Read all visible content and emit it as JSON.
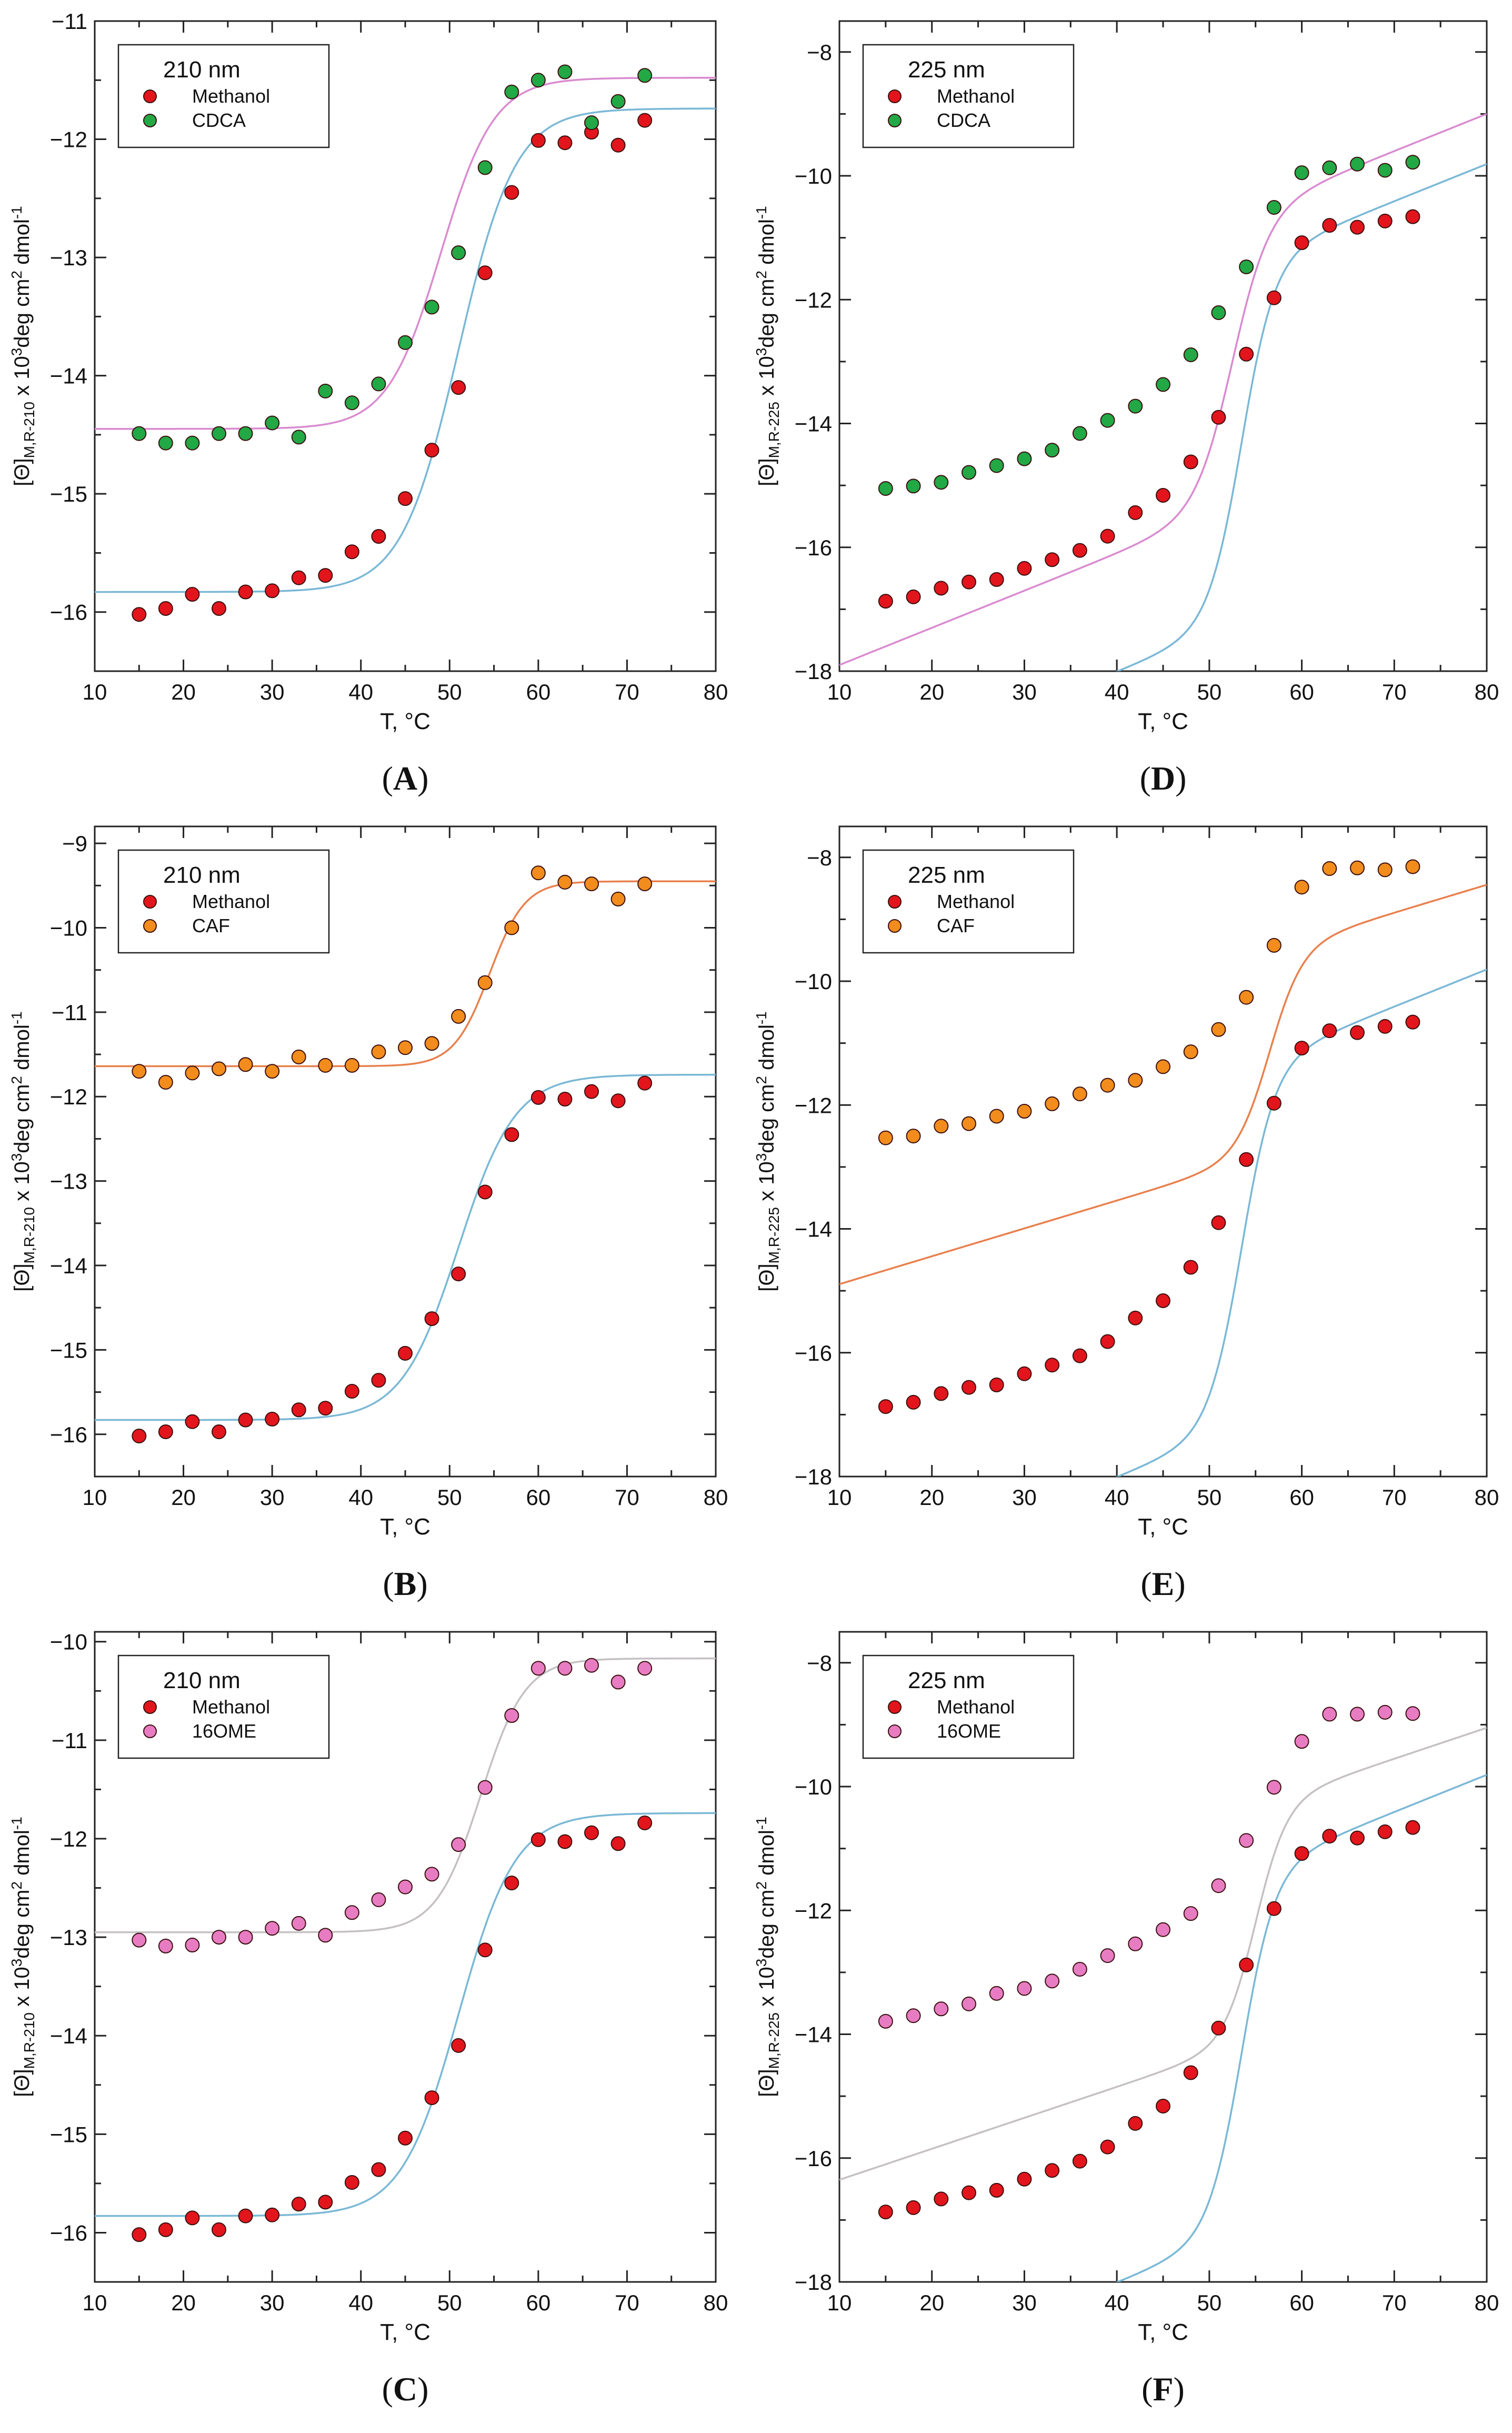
{
  "figure": {
    "colors": {
      "methanol": "#e3151c",
      "cdca": "#22a845",
      "caf": "#f28c1c",
      "ome16": "#e87cc2",
      "fit_methanol": "#7ab8d6",
      "fit_cdca": "#d98ad0",
      "fit_caf": "#e8804d",
      "fit_ome16": "#c4c0c4"
    }
  },
  "chart_data": [
    {
      "id": "A",
      "type": "scatter",
      "caption_letter": "A",
      "legend_title": "210 nm",
      "xlabel": "T, °C",
      "ylabel_main": "[Θ]",
      "ylabel_sub": "M,R-210",
      "ylabel_tail1": " x 10",
      "ylabel_sup1": "3",
      "ylabel_tail2": "deg cm",
      "ylabel_sup2": "2",
      "ylabel_tail3": " dmol",
      "ylabel_sup3": "-1",
      "xlim": [
        10,
        80
      ],
      "ylim": [
        -16.5,
        -11
      ],
      "xticks": [
        10,
        20,
        30,
        40,
        50,
        60,
        70,
        80
      ],
      "yticks": [
        -16,
        -15,
        -14,
        -13,
        -12,
        -11
      ],
      "series": [
        {
          "name": "Methanol",
          "color": "#e3151c",
          "x": [
            15,
            18,
            21,
            24,
            27,
            30,
            33,
            36,
            39,
            42,
            45,
            48,
            51,
            54,
            57,
            60,
            63,
            66,
            69,
            72
          ],
          "y": [
            -16.02,
            -15.97,
            -15.85,
            -15.97,
            -15.83,
            -15.82,
            -15.71,
            -15.69,
            -15.49,
            -15.36,
            -15.04,
            -14.63,
            -14.1,
            -13.13,
            -12.45,
            -12.01,
            -12.03,
            -11.94,
            -12.05,
            -11.84
          ]
        },
        {
          "name": "CDCA",
          "color": "#22a845",
          "x": [
            15,
            18,
            21,
            24,
            27,
            30,
            33,
            36,
            39,
            42,
            45,
            48,
            51,
            54,
            57,
            60,
            63,
            66,
            69,
            72
          ],
          "y": [
            -14.49,
            -14.57,
            -14.57,
            -14.49,
            -14.49,
            -14.4,
            -14.52,
            -14.13,
            -14.23,
            -14.07,
            -13.72,
            -13.42,
            -12.96,
            -12.24,
            -11.6,
            -11.5,
            -11.43,
            -11.86,
            -11.68,
            -11.46
          ]
        }
      ],
      "fits": [
        {
          "name": "Methanol fit",
          "color": "#7ab8d6",
          "kind": "sigmoid",
          "low": -15.83,
          "low_slope": 0,
          "high": -11.74,
          "high_slope": 0,
          "tm": 51.0,
          "width": 3.2
        },
        {
          "name": "CDCA fit",
          "color": "#d98ad0",
          "kind": "sigmoid",
          "low": -14.45,
          "low_slope": 0,
          "high": -11.48,
          "high_slope": 0,
          "tm": 49.0,
          "width": 3.0
        }
      ]
    },
    {
      "id": "D",
      "type": "scatter",
      "caption_letter": "D",
      "legend_title": "225 nm",
      "xlabel": "T, °C",
      "ylabel_main": "[Θ]",
      "ylabel_sub": "M,R-225",
      "ylabel_tail1": " x 10",
      "ylabel_sup1": "3",
      "ylabel_tail2": "deg cm",
      "ylabel_sup2": "2",
      "ylabel_tail3": " dmol",
      "ylabel_sup3": "-1",
      "xlim": [
        10,
        80
      ],
      "ylim": [
        -18,
        -7.5
      ],
      "xticks": [
        10,
        20,
        30,
        40,
        50,
        60,
        70,
        80
      ],
      "yticks": [
        -18,
        -16,
        -14,
        -12,
        -10,
        -8
      ],
      "series": [
        {
          "name": "Methanol",
          "color": "#e3151c",
          "x": [
            15,
            18,
            21,
            24,
            27,
            30,
            33,
            36,
            39,
            42,
            45,
            48,
            51,
            54,
            57,
            60,
            63,
            66,
            69,
            72
          ],
          "y": [
            -16.87,
            -16.8,
            -16.66,
            -16.56,
            -16.52,
            -16.34,
            -16.2,
            -16.05,
            -15.82,
            -15.44,
            -15.16,
            -14.62,
            -13.9,
            -12.88,
            -11.97,
            -11.08,
            -10.8,
            -10.83,
            -10.73,
            -10.66
          ]
        },
        {
          "name": "CDCA",
          "color": "#22a845",
          "x": [
            15,
            18,
            21,
            24,
            27,
            30,
            33,
            36,
            39,
            42,
            45,
            48,
            51,
            54,
            57,
            60,
            63,
            66,
            69,
            72
          ],
          "y": [
            -15.05,
            -15.01,
            -14.95,
            -14.79,
            -14.68,
            -14.57,
            -14.43,
            -14.16,
            -13.95,
            -13.72,
            -13.37,
            -12.89,
            -12.21,
            -11.47,
            -10.51,
            -9.95,
            -9.87,
            -9.81,
            -9.91,
            -9.78
          ]
        }
      ],
      "fits": [
        {
          "name": "Methanol fit",
          "color": "#7ab8d6",
          "kind": "sigmoid",
          "low": -17.2,
          "low_slope": 0.06,
          "high": -11.4,
          "high_slope": 0.06,
          "tm": 53.5,
          "width": 1.8
        },
        {
          "name": "CDCA fit",
          "color": "#d98ad0",
          "kind": "sigmoid",
          "low": -15.35,
          "low_slope": 0.06,
          "high": -10.65,
          "high_slope": 0.06,
          "tm": 52.5,
          "width": 2.0
        }
      ]
    },
    {
      "id": "B",
      "type": "scatter",
      "caption_letter": "B",
      "legend_title": "210 nm",
      "xlabel": "T, °C",
      "ylabel_main": "[Θ]",
      "ylabel_sub": "M,R-210",
      "ylabel_tail1": " x 10",
      "ylabel_sup1": "3",
      "ylabel_tail2": "deg cm",
      "ylabel_sup2": "2",
      "ylabel_tail3": " dmol",
      "ylabel_sup3": "-1",
      "xlim": [
        10,
        80
      ],
      "ylim": [
        -16.5,
        -8.8
      ],
      "xticks": [
        10,
        20,
        30,
        40,
        50,
        60,
        70,
        80
      ],
      "yticks": [
        -16,
        -15,
        -14,
        -13,
        -12,
        -11,
        -10,
        -9
      ],
      "series": [
        {
          "name": "Methanol",
          "color": "#e3151c",
          "x": [
            15,
            18,
            21,
            24,
            27,
            30,
            33,
            36,
            39,
            42,
            45,
            48,
            51,
            54,
            57,
            60,
            63,
            66,
            69,
            72
          ],
          "y": [
            -16.02,
            -15.97,
            -15.85,
            -15.97,
            -15.83,
            -15.82,
            -15.71,
            -15.69,
            -15.49,
            -15.36,
            -15.04,
            -14.63,
            -14.1,
            -13.13,
            -12.45,
            -12.01,
            -12.03,
            -11.94,
            -12.05,
            -11.84
          ]
        },
        {
          "name": "CAF",
          "color": "#f28c1c",
          "x": [
            15,
            18,
            21,
            24,
            27,
            30,
            33,
            36,
            39,
            42,
            45,
            48,
            51,
            54,
            57,
            60,
            63,
            66,
            69,
            72
          ],
          "y": [
            -11.7,
            -11.83,
            -11.72,
            -11.67,
            -11.62,
            -11.7,
            -11.53,
            -11.63,
            -11.63,
            -11.47,
            -11.42,
            -11.37,
            -11.05,
            -10.65,
            -10.0,
            -9.35,
            -9.46,
            -9.48,
            -9.66,
            -9.48
          ]
        }
      ],
      "fits": [
        {
          "name": "Methanol fit",
          "color": "#7ab8d6",
          "kind": "sigmoid",
          "low": -15.83,
          "low_slope": 0,
          "high": -11.74,
          "high_slope": 0,
          "tm": 51.0,
          "width": 3.2
        },
        {
          "name": "CAF fit",
          "color": "#e8804d",
          "kind": "sigmoid",
          "low": -11.64,
          "low_slope": 0,
          "high": -9.45,
          "high_slope": 0,
          "tm": 54.5,
          "width": 2.0
        }
      ]
    },
    {
      "id": "E",
      "type": "scatter",
      "caption_letter": "E",
      "legend_title": "225 nm",
      "xlabel": "T, °C",
      "ylabel_main": "[Θ]",
      "ylabel_sub": "M,R-225",
      "ylabel_tail1": " x 10",
      "ylabel_sup1": "3",
      "ylabel_tail2": "deg cm",
      "ylabel_sup2": "2",
      "ylabel_tail3": " dmol",
      "ylabel_sup3": "-1",
      "xlim": [
        10,
        80
      ],
      "ylim": [
        -18,
        -7.5
      ],
      "xticks": [
        10,
        20,
        30,
        40,
        50,
        60,
        70,
        80
      ],
      "yticks": [
        -18,
        -16,
        -14,
        -12,
        -10,
        -8
      ],
      "series": [
        {
          "name": "Methanol",
          "color": "#e3151c",
          "x": [
            15,
            18,
            21,
            24,
            27,
            30,
            33,
            36,
            39,
            42,
            45,
            48,
            51,
            54,
            57,
            60,
            63,
            66,
            69,
            72
          ],
          "y": [
            -16.87,
            -16.8,
            -16.66,
            -16.56,
            -16.52,
            -16.34,
            -16.2,
            -16.05,
            -15.82,
            -15.44,
            -15.16,
            -14.62,
            -13.9,
            -12.88,
            -11.97,
            -11.08,
            -10.8,
            -10.83,
            -10.73,
            -10.66
          ]
        },
        {
          "name": "CAF",
          "color": "#f28c1c",
          "x": [
            15,
            18,
            21,
            24,
            27,
            30,
            33,
            36,
            39,
            42,
            45,
            48,
            51,
            54,
            57,
            60,
            63,
            66,
            69,
            72
          ],
          "y": [
            -12.53,
            -12.5,
            -12.34,
            -12.3,
            -12.18,
            -12.1,
            -11.98,
            -11.82,
            -11.68,
            -11.6,
            -11.38,
            -11.14,
            -10.78,
            -10.26,
            -9.42,
            -8.48,
            -8.18,
            -8.17,
            -8.2,
            -8.15
          ]
        }
      ],
      "fits": [
        {
          "name": "Methanol fit",
          "color": "#7ab8d6",
          "kind": "sigmoid",
          "low": -17.2,
          "low_slope": 0.06,
          "high": -11.4,
          "high_slope": 0.06,
          "tm": 53.5,
          "width": 1.8
        },
        {
          "name": "CAF fit",
          "color": "#e8804d",
          "kind": "sigmoid",
          "low": -12.8,
          "low_slope": 0.045,
          "high": -9.5,
          "high_slope": 0.045,
          "tm": 56.5,
          "width": 1.8
        }
      ]
    },
    {
      "id": "C",
      "type": "scatter",
      "caption_letter": "C",
      "legend_title": "210 nm",
      "xlabel": "T, °C",
      "ylabel_main": "[Θ]",
      "ylabel_sub": "M,R-210",
      "ylabel_tail1": " x 10",
      "ylabel_sup1": "3",
      "ylabel_tail2": "deg cm",
      "ylabel_sup2": "2",
      "ylabel_tail3": " dmol",
      "ylabel_sup3": "-1",
      "xlim": [
        10,
        80
      ],
      "ylim": [
        -16.5,
        -9.9
      ],
      "xticks": [
        10,
        20,
        30,
        40,
        50,
        60,
        70,
        80
      ],
      "yticks": [
        -16,
        -15,
        -14,
        -13,
        -12,
        -11,
        -10
      ],
      "series": [
        {
          "name": "Methanol",
          "color": "#e3151c",
          "x": [
            15,
            18,
            21,
            24,
            27,
            30,
            33,
            36,
            39,
            42,
            45,
            48,
            51,
            54,
            57,
            60,
            63,
            66,
            69,
            72
          ],
          "y": [
            -16.02,
            -15.97,
            -15.85,
            -15.97,
            -15.83,
            -15.82,
            -15.71,
            -15.69,
            -15.49,
            -15.36,
            -15.04,
            -14.63,
            -14.1,
            -13.13,
            -12.45,
            -12.01,
            -12.03,
            -11.94,
            -12.05,
            -11.84
          ]
        },
        {
          "name": "16OME",
          "color": "#e87cc2",
          "x": [
            15,
            18,
            21,
            24,
            27,
            30,
            33,
            36,
            39,
            42,
            45,
            48,
            51,
            54,
            57,
            60,
            63,
            66,
            69,
            72
          ],
          "y": [
            -13.03,
            -13.09,
            -13.08,
            -13.0,
            -13.0,
            -12.91,
            -12.86,
            -12.98,
            -12.75,
            -12.62,
            -12.49,
            -12.36,
            -12.06,
            -11.48,
            -10.75,
            -10.27,
            -10.27,
            -10.24,
            -10.41,
            -10.27
          ]
        }
      ],
      "fits": [
        {
          "name": "Methanol fit",
          "color": "#7ab8d6",
          "kind": "sigmoid",
          "low": -15.83,
          "low_slope": 0,
          "high": -11.74,
          "high_slope": 0,
          "tm": 51.0,
          "width": 3.2
        },
        {
          "name": "16OME fit",
          "color": "#c4c0c4",
          "kind": "sigmoid",
          "low": -12.95,
          "low_slope": 0,
          "high": -10.17,
          "high_slope": 0,
          "tm": 53.5,
          "width": 2.5
        }
      ]
    },
    {
      "id": "F",
      "type": "scatter",
      "caption_letter": "F",
      "legend_title": "225 nm",
      "xlabel": "T, °C",
      "ylabel_main": "[Θ]",
      "ylabel_sub": "M,R-225",
      "ylabel_tail1": " x 10",
      "ylabel_sup1": "3",
      "ylabel_tail2": "deg cm",
      "ylabel_sup2": "2",
      "ylabel_tail3": " dmol",
      "ylabel_sup3": "-1",
      "xlim": [
        10,
        80
      ],
      "ylim": [
        -18,
        -7.5
      ],
      "xticks": [
        10,
        20,
        30,
        40,
        50,
        60,
        70,
        80
      ],
      "yticks": [
        -18,
        -16,
        -14,
        -12,
        -10,
        -8
      ],
      "series": [
        {
          "name": "Methanol",
          "color": "#e3151c",
          "x": [
            15,
            18,
            21,
            24,
            27,
            30,
            33,
            36,
            39,
            42,
            45,
            48,
            51,
            54,
            57,
            60,
            63,
            66,
            69,
            72
          ],
          "y": [
            -16.87,
            -16.8,
            -16.66,
            -16.56,
            -16.52,
            -16.34,
            -16.2,
            -16.05,
            -15.82,
            -15.44,
            -15.16,
            -14.62,
            -13.9,
            -12.88,
            -11.97,
            -11.08,
            -10.8,
            -10.83,
            -10.73,
            -10.66
          ]
        },
        {
          "name": "16OME",
          "color": "#e87cc2",
          "x": [
            15,
            18,
            21,
            24,
            27,
            30,
            33,
            36,
            39,
            42,
            45,
            48,
            51,
            54,
            57,
            60,
            63,
            66,
            69,
            72
          ],
          "y": [
            -13.79,
            -13.7,
            -13.59,
            -13.51,
            -13.34,
            -13.26,
            -13.14,
            -12.95,
            -12.73,
            -12.54,
            -12.31,
            -12.05,
            -11.6,
            -10.87,
            -10.01,
            -9.27,
            -8.83,
            -8.83,
            -8.8,
            -8.82
          ]
        }
      ],
      "fits": [
        {
          "name": "Methanol fit",
          "color": "#7ab8d6",
          "kind": "sigmoid",
          "low": -17.2,
          "low_slope": 0.06,
          "high": -11.4,
          "high_slope": 0.06,
          "tm": 53.5,
          "width": 1.8
        },
        {
          "name": "16OME fit",
          "color": "#c4c0c4",
          "kind": "sigmoid",
          "low": -14.1,
          "low_slope": 0.05,
          "high": -10.3,
          "high_slope": 0.05,
          "tm": 55.0,
          "width": 1.7
        }
      ]
    }
  ]
}
